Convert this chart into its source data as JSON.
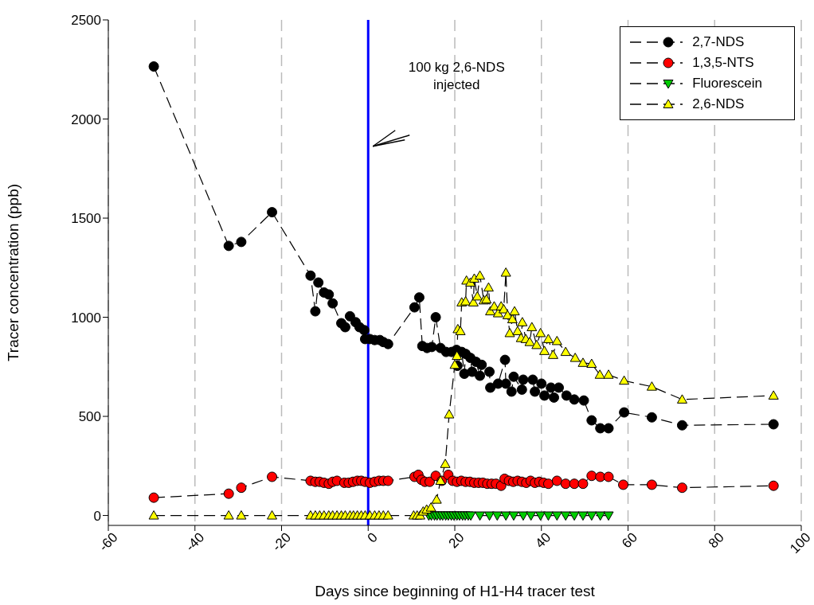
{
  "chart_data": {
    "type": "line",
    "xlabel": "Days since beginning of H1-H4 tracer test",
    "ylabel": "Tracer concentration (ppb)",
    "xlim": [
      -60,
      100
    ],
    "xticks": [
      -60,
      -40,
      -20,
      0,
      20,
      40,
      60,
      80,
      100
    ],
    "ylim": [
      -50,
      2500
    ],
    "yticks": [
      0,
      500,
      1000,
      1500,
      2000,
      2500
    ],
    "grid": "x",
    "legend": "top right",
    "line_style": "dashed",
    "ref_lines": [
      {
        "axis": "x",
        "value": 0,
        "color": "#0000ff"
      }
    ],
    "annotations": [
      "100 kg 2,6-NDS injected"
    ],
    "series": [
      {
        "name": "2,7-NDS",
        "color": "#000000",
        "marker": "circle",
        "x": [
          -49.5,
          -32.2,
          -29.3,
          -22.2,
          -13.3,
          -12.2,
          -11.5,
          -10.2,
          -9.1,
          -8.2,
          -6.2,
          -5.3,
          -4.2,
          -2.9,
          -2,
          -0.9,
          -0.7,
          0.4,
          1.5,
          2.7,
          3.5,
          4.6,
          10.7,
          11.8,
          12.5,
          13.6,
          14.7,
          15.6,
          16.7,
          18,
          19.3,
          20.4,
          20.6,
          21.6,
          22.2,
          22.5,
          23.6,
          24,
          24.9,
          25.8,
          26.2,
          28,
          28.2,
          30,
          31.6,
          31.8,
          33.1,
          33.6,
          35.5,
          35.8,
          38,
          38.5,
          40,
          40.7,
          42.2,
          42.9,
          44,
          45.8,
          47.6,
          49.8,
          51.6,
          53.6,
          55.5,
          59.1,
          65.5,
          72.5,
          93.6
        ],
        "values": [
          2265,
          1360,
          1380,
          1530,
          1210,
          1030,
          1175,
          1125,
          1115,
          1070,
          970,
          950,
          1005,
          975,
          950,
          935,
          890,
          890,
          885,
          885,
          875,
          865,
          1050,
          1100,
          855,
          845,
          850,
          1000,
          845,
          825,
          825,
          835,
          755,
          825,
          715,
          815,
          795,
          725,
          775,
          705,
          760,
          725,
          645,
          665,
          785,
          665,
          625,
          700,
          635,
          685,
          685,
          625,
          665,
          605,
          645,
          595,
          645,
          605,
          585,
          580,
          480,
          440,
          440,
          520,
          495,
          455,
          460
        ]
      },
      {
        "name": "1,3,5-NTS",
        "color": "#ff0000",
        "marker": "circle",
        "x": [
          -49.5,
          -32.2,
          -29.3,
          -22.2,
          -13.3,
          -12.2,
          -11.2,
          -10.2,
          -9.1,
          -8.2,
          -7.2,
          -5.5,
          -4.5,
          -3.5,
          -2.5,
          -1.6,
          -0.7,
          0.4,
          1.5,
          2.5,
          3.5,
          4.6,
          10.7,
          11.6,
          12.3,
          13.1,
          14.2,
          15.6,
          17,
          18.5,
          19.5,
          20.5,
          21.5,
          22.5,
          23.5,
          24.5,
          25.5,
          26.5,
          27.5,
          28.5,
          29.5,
          30.7,
          31.5,
          32.5,
          33.5,
          34.5,
          35.5,
          36.5,
          37.5,
          38.5,
          39.5,
          40.5,
          41.6,
          43.6,
          45.6,
          47.6,
          49.6,
          51.6,
          53.6,
          55.5,
          58.9,
          65.5,
          72.5,
          93.6
        ],
        "values": [
          90,
          110,
          140,
          195,
          175,
          170,
          170,
          165,
          160,
          170,
          175,
          165,
          165,
          170,
          175,
          175,
          170,
          165,
          170,
          175,
          175,
          175,
          195,
          205,
          180,
          170,
          170,
          200,
          175,
          205,
          175,
          170,
          175,
          170,
          170,
          165,
          165,
          165,
          160,
          160,
          160,
          150,
          185,
          175,
          170,
          175,
          170,
          165,
          175,
          165,
          170,
          165,
          160,
          175,
          160,
          160,
          160,
          200,
          195,
          195,
          155,
          155,
          140,
          150
        ]
      },
      {
        "name": "Fluorescein",
        "color": "#00cc00",
        "marker": "triangle-down",
        "x": [
          14,
          14.6,
          15.3,
          15.9,
          16.6,
          17.2,
          17.9,
          18.5,
          19.2,
          19.8,
          20.5,
          21.1,
          21.8,
          22.4,
          23.1,
          23.7,
          25.8,
          28,
          29.8,
          31.8,
          33.6,
          35.8,
          37.6,
          39.8,
          41.6,
          43.6,
          45.6,
          47.6,
          49.6,
          51.6,
          53.6,
          55.5
        ],
        "values": [
          0,
          0,
          0,
          0,
          0,
          0,
          0,
          0,
          0,
          0,
          0,
          0,
          0,
          0,
          0,
          0,
          0,
          0,
          0,
          0,
          0,
          0,
          0,
          0,
          0,
          0,
          0,
          0,
          0,
          0,
          0,
          0
        ]
      },
      {
        "name": "2,6-NDS",
        "color": "#ffff00",
        "marker": "triangle",
        "x": [
          -49.5,
          -32.2,
          -29.3,
          -22.2,
          -13.3,
          -12.2,
          -11.2,
          -10.2,
          -9.1,
          -8.2,
          -7.2,
          -6.2,
          -5.3,
          -4.2,
          -3.4,
          -2.5,
          -1.6,
          -0.7,
          0.4,
          1.5,
          2.5,
          3.5,
          4.6,
          10.5,
          11.3,
          12,
          12.7,
          13.5,
          14.5,
          15.8,
          16.7,
          17.8,
          18.7,
          20,
          20.5,
          20.7,
          21.3,
          21.6,
          22.5,
          22.7,
          23.6,
          24.3,
          24.5,
          25.2,
          25.8,
          26.7,
          27.3,
          27.8,
          28.2,
          29.1,
          30,
          30.7,
          31.3,
          31.8,
          32.2,
          32.7,
          33.3,
          33.8,
          34.5,
          35.3,
          35.6,
          36.4,
          37.3,
          37.8,
          38.9,
          39.8,
          40.7,
          41.6,
          42.7,
          43.6,
          45.6,
          47.8,
          49.6,
          51.6,
          53.5,
          55.5,
          59.1,
          65.5,
          72.5,
          93.6
        ],
        "values": [
          0,
          0,
          0,
          0,
          0,
          0,
          0,
          0,
          0,
          0,
          0,
          0,
          0,
          0,
          0,
          0,
          0,
          0,
          0,
          0,
          0,
          0,
          0,
          0,
          0,
          0,
          20,
          30,
          40,
          80,
          175,
          260,
          510,
          760,
          805,
          940,
          930,
          1075,
          1080,
          1185,
          1175,
          1075,
          1195,
          1105,
          1210,
          1085,
          1090,
          1150,
          1030,
          1055,
          1020,
          1055,
          1040,
          1225,
          1010,
          920,
          990,
          1030,
          930,
          895,
          975,
          890,
          875,
          950,
          860,
          920,
          830,
          890,
          810,
          880,
          825,
          795,
          770,
          765,
          710,
          710,
          680,
          650,
          585,
          605
        ]
      }
    ]
  }
}
